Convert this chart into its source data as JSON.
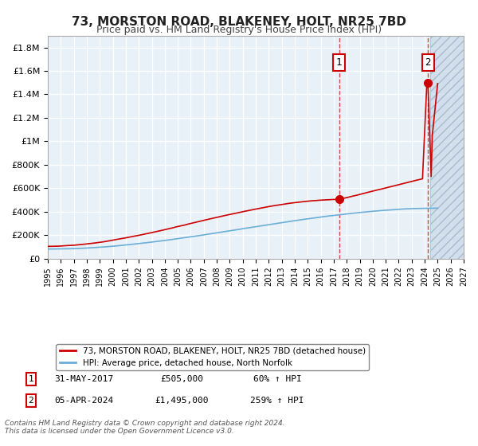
{
  "title": "73, MORSTON ROAD, BLAKENEY, HOLT, NR25 7BD",
  "subtitle": "Price paid vs. HM Land Registry's House Price Index (HPI)",
  "title_fontsize": 11,
  "subtitle_fontsize": 9,
  "bg_color": "#ffffff",
  "plot_bg_color": "#e8f0f8",
  "grid_color": "#ffffff",
  "hpi_line_color": "#6baed6",
  "price_line_color": "#cc0000",
  "sale1_date_x": 2017.41,
  "sale1_price": 505000,
  "sale2_date_x": 2024.25,
  "sale2_price": 1495000,
  "sale1_label": "1",
  "sale2_label": "2",
  "legend_label1": "73, MORSTON ROAD, BLAKENEY, HOLT, NR25 7BD (detached house)",
  "legend_label2": "HPI: Average price, detached house, North Norfolk",
  "info1_num": "1",
  "info1_date": "31-MAY-2017",
  "info1_price": "£505,000",
  "info1_hpi": "60% ↑ HPI",
  "info2_num": "2",
  "info2_date": "05-APR-2024",
  "info2_price": "£1,495,000",
  "info2_hpi": "259% ↑ HPI",
  "footer": "Contains HM Land Registry data © Crown copyright and database right 2024.\nThis data is licensed under the Open Government Licence v3.0.",
  "xmin": 1995,
  "xmax": 2027,
  "ymin": 0,
  "ymax": 1900000,
  "yticks": [
    0,
    200000,
    400000,
    600000,
    800000,
    1000000,
    1200000,
    1400000,
    1600000,
    1800000
  ],
  "xticks": [
    1995,
    1996,
    1997,
    1998,
    1999,
    2000,
    2001,
    2002,
    2003,
    2004,
    2005,
    2006,
    2007,
    2008,
    2009,
    2010,
    2011,
    2012,
    2013,
    2014,
    2015,
    2016,
    2017,
    2018,
    2019,
    2020,
    2021,
    2022,
    2023,
    2024,
    2025,
    2026,
    2027
  ],
  "hatch_start": 2024.42,
  "hatch_end": 2027
}
